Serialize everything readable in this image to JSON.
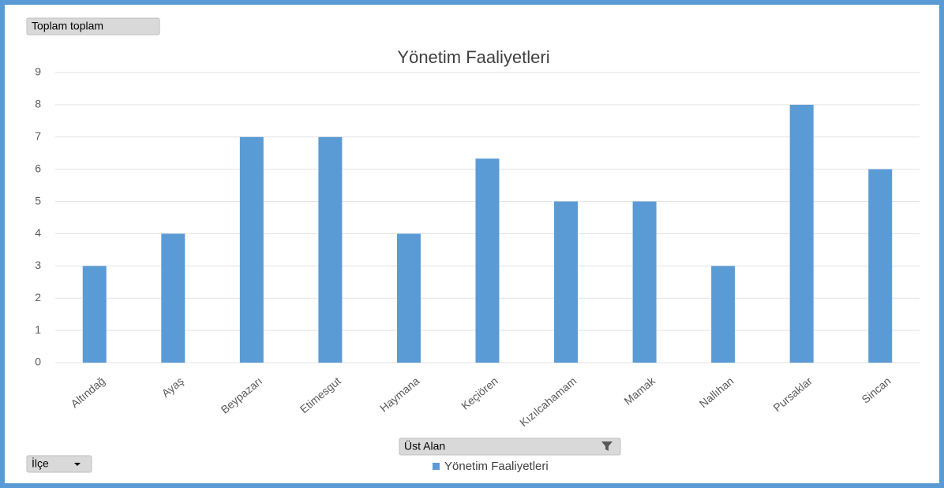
{
  "chart_data": {
    "type": "bar",
    "title": "Yönetim Faaliyetleri",
    "categories": [
      "Altındağ",
      "Ayaş",
      "Beypazarı",
      "Etimesgut",
      "Haymana",
      "Keçiören",
      "Kızılcahamam",
      "Mamak",
      "Nallıhan",
      "Pursaklar",
      "Sincan"
    ],
    "series": [
      {
        "name": "Yönetim Faaliyetleri",
        "color": "#5b9bd5",
        "values": [
          3,
          4,
          7,
          7,
          4,
          6.33,
          5,
          5,
          3,
          8,
          6
        ]
      }
    ],
    "ylim": [
      0,
      9
    ],
    "yticks": [
      0,
      1,
      2,
      3,
      4,
      5,
      6,
      7,
      8,
      9
    ],
    "grid": true,
    "legend": "bottom"
  },
  "controls": {
    "values_button": "Toplam toplam",
    "filter_button": "Üst Alan",
    "axis_button": "İlçe"
  }
}
